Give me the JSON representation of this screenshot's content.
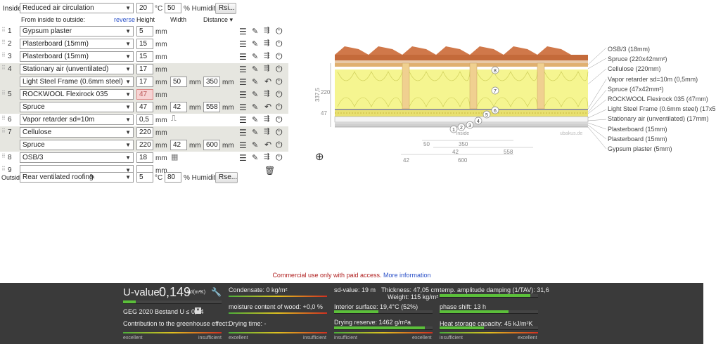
{
  "top": {
    "inside_label": "Inside:",
    "inside_value": "Reduced air circulation",
    "inside_temp": "20",
    "temp_unit": "°C",
    "inside_humidity": "50",
    "humidity_unit": "% Humidity",
    "rsi_label": "Rsi..."
  },
  "headers": {
    "from_inside": "From inside to outside:",
    "reverse": "reverse",
    "height": "Height",
    "width": "Width",
    "distance": "Distance ▾"
  },
  "layers": [
    {
      "num": "1",
      "material": "Gypsum plaster",
      "thickness": "5"
    },
    {
      "num": "2",
      "material": "Plasterboard (15mm)",
      "thickness": "15"
    },
    {
      "num": "3",
      "material": "Plasterboard (15mm)",
      "thickness": "15"
    },
    {
      "num": "4",
      "material": "Stationary air (unventilated)",
      "thickness": "17",
      "sub": {
        "material": "Light Steel Frame (0.6mm steel)",
        "thickness": "17",
        "width": "50",
        "distance": "350"
      }
    },
    {
      "num": "5",
      "material": "ROCKWOOL Flexirock 035",
      "thickness": "47",
      "sub": {
        "material": "Spruce",
        "thickness": "47",
        "width": "42",
        "distance": "558"
      }
    },
    {
      "num": "6",
      "material": "Vapor retarder sd=10m",
      "thickness": "0,5"
    },
    {
      "num": "7",
      "material": "Cellulose",
      "thickness": "220",
      "sub": {
        "material": "Spruce",
        "thickness": "220",
        "width": "42",
        "distance": "600"
      }
    },
    {
      "num": "8",
      "material": "OSB/3",
      "thickness": "18"
    },
    {
      "num": "9",
      "material": "",
      "thickness": ""
    }
  ],
  "units": {
    "mm": "mm"
  },
  "bottom": {
    "outside_label": "Outside",
    "outside_value": "Rear ventilated roofing",
    "outside_temp": "5",
    "temp_unit": "°C",
    "outside_humidity": "80",
    "humidity_unit": "% Humidity",
    "rse_label": "Rse..."
  },
  "diagram": {
    "legend": [
      "OSB/3 (18mm)",
      "Spruce (220x42mm²)",
      "Cellulose (220mm)",
      "Vapor retarder sd=10m (0,5mm)",
      "Spruce (47x42mm²)",
      "ROCKWOOL Flexirock 035 (47mm)",
      "Light Steel Frame (0.6mm steel) (17x5",
      "Stationary air (unventilated) (17mm)",
      "Plasterboard (15mm)",
      "Plasterboard (15mm)",
      "Gypsum plaster (5mm)"
    ],
    "dim_total": "337,5",
    "dim_220": "220",
    "dim_47": "47",
    "inside_text": "inside",
    "watermark": "ubakus.de",
    "d50": "50",
    "d350": "350",
    "d42a": "42",
    "d558": "558",
    "d42b": "42",
    "d600": "600",
    "markers": [
      "1",
      "2",
      "3",
      "4",
      "5",
      "6",
      "7",
      "8"
    ]
  },
  "notice": {
    "text": "Commercial use only with paid access.",
    "link": "More information"
  },
  "footer": {
    "uvalue_label": "U-value:",
    "uvalue": "0,149",
    "uvalue_unit": "W/(m²K)",
    "uvalue_fill": 0.13,
    "geg": "GEG 2020 Bestand U ≤ 0,24",
    "greenhouse": "Contribution to the greenhouse effect:",
    "condensate": "Condensate: 0 kg/m²",
    "moisture": "moisture content of wood: +0,0 %",
    "drying_time": "Drying time: -",
    "sd_value": "sd-value: 19 m",
    "thickness": "Thickness: 47,05 cm",
    "weight": "Weight: 115 kg/m²",
    "interior_surface": "Interior surface: 19,4°C (52%)",
    "interior_fill": 0.45,
    "drying_reserve": "Drying reserve: 1462 g/m²a",
    "drying_fill": 0.92,
    "temp_damping": "temp. amplitude damping (1/TAV): 31,6",
    "damping_fill": 0.92,
    "phase_shift": "phase shift: 13 h",
    "phase_fill": 0.7,
    "heat_storage": "Heat storage capacity: 45 kJ/m²K",
    "heat_fill": 0.45,
    "excellent": "excellent",
    "insufficient": "insufficient"
  }
}
